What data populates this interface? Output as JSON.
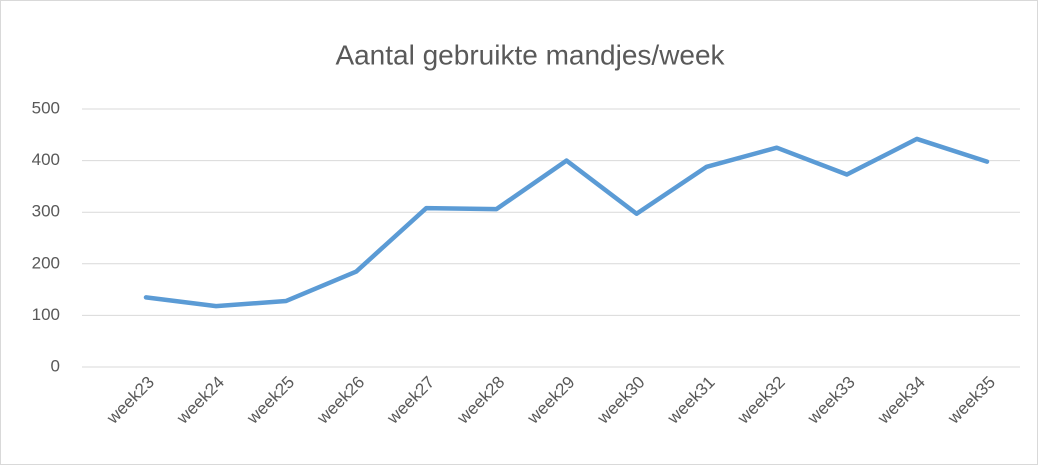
{
  "chart_data": {
    "type": "line",
    "title": "Aantal gebruikte mandjes/week",
    "categories": [
      "week23",
      "week24",
      "week25",
      "week26",
      "week27",
      "week28",
      "week29",
      "week30",
      "week31",
      "week32",
      "week33",
      "week34",
      "week35"
    ],
    "series": [
      {
        "name": "Aantal gebruikte mandjes",
        "color": "#5b9bd5",
        "values": [
          135,
          118,
          128,
          185,
          308,
          306,
          400,
          297,
          388,
          425,
          373,
          442,
          398
        ]
      }
    ],
    "ylim": [
      0,
      500
    ],
    "yticks": [
      0,
      100,
      200,
      300,
      400,
      500
    ],
    "grid": true
  }
}
